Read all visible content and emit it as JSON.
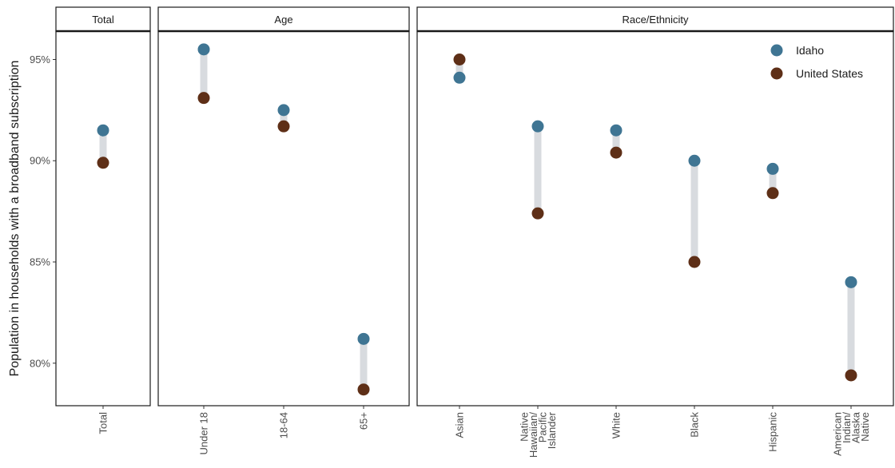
{
  "chart_data": {
    "type": "dumbbell",
    "ylabel": "Population in households with a broadband subscription",
    "ylim": [
      77.9,
      96.4
    ],
    "yticks": [
      {
        "value": 80,
        "label": "80%"
      },
      {
        "value": 85,
        "label": "85%"
      },
      {
        "value": 90,
        "label": "90%"
      },
      {
        "value": 95,
        "label": "95%"
      }
    ],
    "grid": false,
    "legend": {
      "position": "top-right"
    },
    "series": [
      {
        "name": "Idaho",
        "color": "#3f7593"
      },
      {
        "name": "United States",
        "color": "#5e2f17"
      }
    ],
    "connector_color": "#d8dbdf",
    "facets": [
      {
        "name": "Total",
        "categories": [
          {
            "label": [
              "Total"
            ],
            "idaho": 91.5,
            "united_states": 89.9
          }
        ]
      },
      {
        "name": "Age",
        "categories": [
          {
            "label": [
              "Under 18"
            ],
            "idaho": 95.5,
            "united_states": 93.1
          },
          {
            "label": [
              "18-64"
            ],
            "idaho": 92.5,
            "united_states": 91.7
          },
          {
            "label": [
              "65+"
            ],
            "idaho": 81.2,
            "united_states": 78.7
          }
        ]
      },
      {
        "name": "Race/Ethnicity",
        "categories": [
          {
            "label": [
              "Asian"
            ],
            "idaho": 94.1,
            "united_states": 95.0
          },
          {
            "label": [
              "Native",
              "Hawaiian/",
              "Pacific",
              "Islander"
            ],
            "idaho": 91.7,
            "united_states": 87.4
          },
          {
            "label": [
              "White"
            ],
            "idaho": 91.5,
            "united_states": 90.4
          },
          {
            "label": [
              "Black"
            ],
            "idaho": 90.0,
            "united_states": 85.0
          },
          {
            "label": [
              "Hispanic"
            ],
            "idaho": 89.6,
            "united_states": 88.4
          },
          {
            "label": [
              "American",
              "Indian/",
              "Alaska",
              "Native"
            ],
            "idaho": 84.0,
            "united_states": 79.4
          }
        ]
      }
    ]
  }
}
